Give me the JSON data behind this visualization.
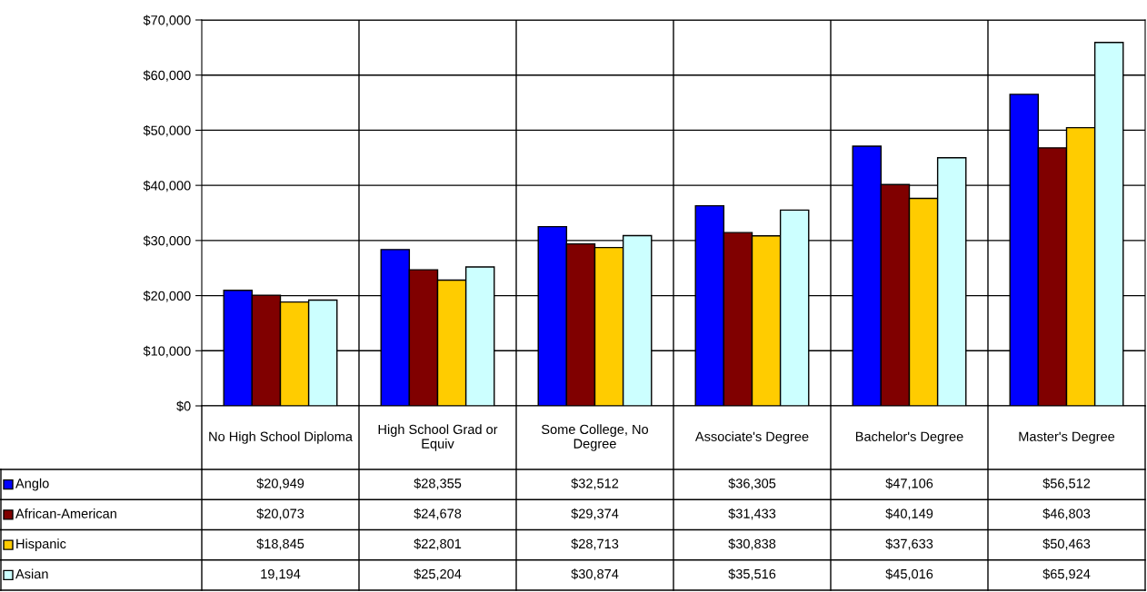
{
  "chart_data": {
    "type": "bar",
    "categories": [
      "No High School Diploma",
      "High School Grad or Equiv",
      "Some College, No Degree",
      "Associate's Degree",
      "Bachelor's Degree",
      "Master's Degree"
    ],
    "series": [
      {
        "name": "Anglo",
        "color": "#0000ff",
        "values": [
          20949,
          28355,
          32512,
          36305,
          47106,
          56512
        ],
        "value_labels": [
          "$20,949",
          "$28,355",
          "$32,512",
          "$36,305",
          "$47,106",
          "$56,512"
        ]
      },
      {
        "name": "African-American",
        "color": "#800000",
        "values": [
          20073,
          24678,
          29374,
          31433,
          40149,
          46803
        ],
        "value_labels": [
          "$20,073",
          "$24,678",
          "$29,374",
          "$31,433",
          "$40,149",
          "$46,803"
        ]
      },
      {
        "name": "Hispanic",
        "color": "#ffcc00",
        "values": [
          18845,
          22801,
          28713,
          30838,
          37633,
          50463
        ],
        "value_labels": [
          "$18,845",
          "$22,801",
          "$28,713",
          "$30,838",
          "$37,633",
          "$50,463"
        ]
      },
      {
        "name": "Asian",
        "color": "#ccffff",
        "values": [
          19194,
          25204,
          30874,
          35516,
          45016,
          65924
        ],
        "value_labels": [
          "19,194",
          "$25,204",
          "$30,874",
          "$35,516",
          "$45,016",
          "$65,924"
        ]
      }
    ],
    "ylim": [
      0,
      70000
    ],
    "yticks": [
      {
        "value": 0,
        "label": "$0"
      },
      {
        "value": 10000,
        "label": "$10,000"
      },
      {
        "value": 20000,
        "label": "$20,000"
      },
      {
        "value": 30000,
        "label": "$30,000"
      },
      {
        "value": 40000,
        "label": "$40,000"
      },
      {
        "value": 50000,
        "label": "$50,000"
      },
      {
        "value": 60000,
        "label": "$60,000"
      },
      {
        "value": 70000,
        "label": "$70,000"
      }
    ],
    "grid": true,
    "legend": "bottom left"
  }
}
